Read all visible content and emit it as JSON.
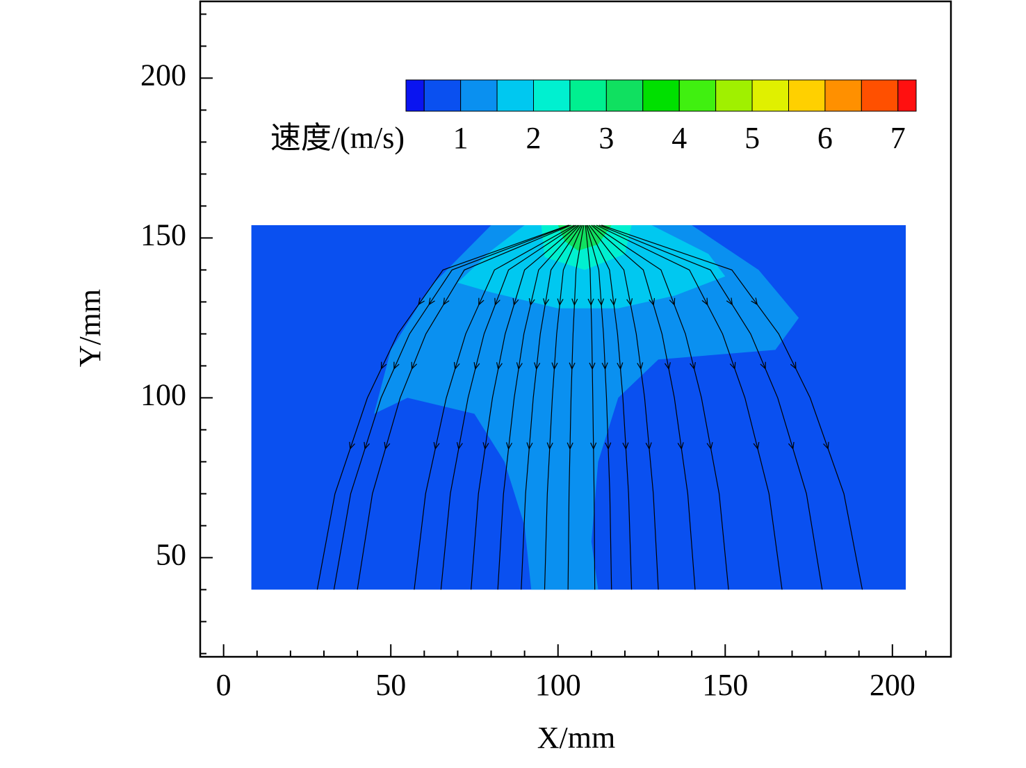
{
  "chart_data": {
    "type": "contour-streamline",
    "xlabel": "X/mm",
    "ylabel": "Y/mm",
    "xlim": [
      -7,
      217.5
    ],
    "ylim": [
      19,
      224
    ],
    "xticks": [
      0,
      50,
      100,
      150,
      200
    ],
    "yticks": [
      50,
      100,
      150,
      200
    ],
    "xminorticks": [
      10,
      20,
      30,
      40,
      60,
      70,
      80,
      90,
      110,
      120,
      130,
      140,
      160,
      170,
      180,
      190,
      210
    ],
    "yminorticks": [
      20,
      30,
      40,
      60,
      70,
      80,
      90,
      110,
      120,
      130,
      140,
      160,
      170,
      180,
      190,
      210,
      220
    ],
    "colorbar": {
      "label": "速度/(m/s)",
      "bounds": [
        0.25,
        0.5,
        1,
        1.5,
        2,
        2.5,
        3,
        3.5,
        4,
        4.5,
        5,
        5.5,
        6,
        6.5,
        7,
        7.25
      ],
      "colors": [
        "#0a14f0",
        "#0a50f0",
        "#0a90f0",
        "#00c8f0",
        "#00f0d0",
        "#00f090",
        "#10e060",
        "#00e000",
        "#40f010",
        "#a0f000",
        "#e0f000",
        "#ffd000",
        "#ff9000",
        "#ff5000",
        "#ff1010"
      ],
      "ticks": [
        1,
        2,
        3,
        4,
        5,
        6,
        7
      ]
    },
    "regions": [
      {
        "speed": 0.75,
        "x": [
          8.3,
          204,
          204,
          8.3
        ],
        "y": [
          154,
          154,
          40,
          40
        ]
      },
      {
        "speed": 1.25,
        "x": [
          80,
          140,
          160,
          172,
          165,
          130,
          118,
          112,
          110,
          112,
          92,
          90,
          84,
          75,
          55,
          45,
          50,
          62
        ],
        "y": [
          154,
          154,
          140,
          125,
          115,
          112,
          100,
          80,
          55,
          40,
          40,
          60,
          80,
          95,
          100,
          95,
          115,
          135
        ]
      },
      {
        "speed": 1.75,
        "x": [
          90,
          128,
          145,
          150,
          135,
          118,
          100,
          80,
          70,
          80
        ],
        "y": [
          154,
          154,
          145,
          138,
          132,
          128,
          128,
          133,
          136,
          146
        ]
      },
      {
        "speed": 2.25,
        "x": [
          95,
          122,
          120,
          108,
          96
        ],
        "y": [
          154,
          154,
          145,
          140,
          144
        ]
      },
      {
        "speed": 3.0,
        "x": [
          100,
          116,
          112,
          106,
          102
        ],
        "y": [
          154,
          154,
          148,
          146,
          149
        ]
      }
    ],
    "streamline_y": [
      154,
      140,
      120,
      100,
      70,
      40
    ],
    "streamlines": [
      {
        "x": [
          103.2,
          65.6,
          52.1,
          43.0,
          33.3,
          28
        ]
      },
      {
        "x": [
          103.5,
          68.3,
          55.6,
          47.1,
          38.0,
          33
        ]
      },
      {
        "x": [
          103.9,
          72.0,
          60.5,
          52.8,
          44.5,
          40
        ]
      },
      {
        "x": [
          104.9,
          81.0,
          72.4,
          66.6,
          60.4,
          57
        ]
      },
      {
        "x": [
          105.4,
          85.2,
          77.9,
          73.1,
          67.8,
          65
        ]
      },
      {
        "x": [
          106.0,
          90.0,
          84.2,
          80.4,
          76.2,
          74
        ]
      },
      {
        "x": [
          106.4,
          94.2,
          89.8,
          86.9,
          83.7,
          82
        ]
      },
      {
        "x": [
          106.9,
          97.9,
          94.7,
          92.6,
          90.3,
          89
        ]
      },
      {
        "x": [
          107.3,
          101.6,
          99.6,
          98.3,
          96.8,
          96
        ]
      },
      {
        "x": [
          107.7,
          105.4,
          104.5,
          103.9,
          103.3,
          103
        ]
      },
      {
        "x": [
          108.2,
          109.6,
          110.1,
          110.4,
          110.8,
          111
        ]
      },
      {
        "x": [
          108.5,
          112.2,
          113.6,
          114.5,
          115.5,
          116
        ]
      },
      {
        "x": [
          108.8,
          115.4,
          117.8,
          119.4,
          121.1,
          122
        ]
      },
      {
        "x": [
          109.3,
          119.7,
          123.4,
          125.9,
          128.5,
          130
        ]
      },
      {
        "x": [
          110.0,
          125.5,
          131.1,
          134.8,
          138.8,
          141
        ]
      },
      {
        "x": [
          110.6,
          130.8,
          138.1,
          142.9,
          148.2,
          151
        ]
      },
      {
        "x": [
          111.5,
          139.3,
          149.2,
          155.9,
          163.1,
          167
        ]
      },
      {
        "x": [
          112.3,
          145.6,
          157.6,
          165.7,
          174.3,
          179
        ]
      },
      {
        "x": [
          113.0,
          152.0,
          166.0,
          175.4,
          185.5,
          191
        ]
      }
    ]
  }
}
